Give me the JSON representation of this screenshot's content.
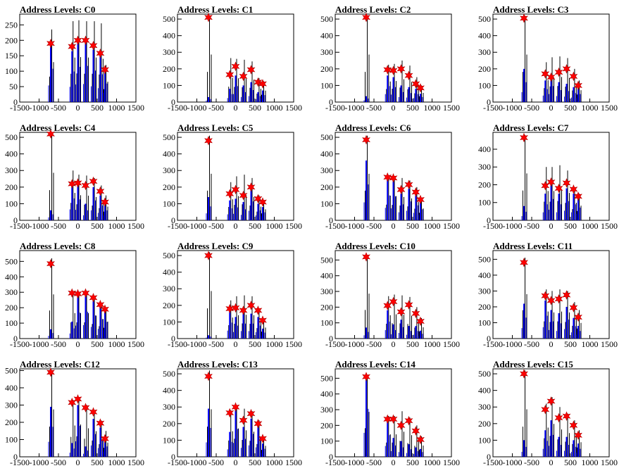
{
  "figure": {
    "panels_per_row": 4,
    "colors": {
      "black_trace": "#000000",
      "blue_trace": "#0000ff",
      "marker": "#ff0000",
      "axis": "#000000"
    }
  },
  "chart_data": [
    {
      "type": "bar",
      "title": "Address Levels: C0",
      "xlim": [
        -1500,
        1500
      ],
      "ylim": [
        0,
        285
      ],
      "xticks": [
        -1500,
        -1000,
        -500,
        0,
        500,
        1000,
        1500
      ],
      "yticks": [
        0,
        50,
        100,
        150,
        200,
        250
      ],
      "grid": false,
      "legend": "none",
      "peaks": {
        "x": [
          -700,
          -150,
          0,
          200,
          400,
          580,
          700
        ],
        "black": [
          235,
          262,
          265,
          262,
          262,
          255,
          120
        ],
        "blue": [
          180,
          165,
          190,
          195,
          170,
          150,
          100
        ],
        "markers": [
          190,
          180,
          200,
          200,
          183,
          158,
          105
        ]
      }
    },
    {
      "type": "bar",
      "title": "Address Levels: C1",
      "xlim": [
        -1500,
        1500
      ],
      "ylim": [
        0,
        530
      ],
      "xticks": [
        -1500,
        -1000,
        -500,
        0,
        500,
        1000,
        1500
      ],
      "yticks": [
        0,
        100,
        200,
        300,
        400,
        500
      ],
      "grid": false,
      "legend": "none",
      "peaks": {
        "x": [
          -700,
          -150,
          0,
          200,
          400,
          580,
          700
        ],
        "black": [
          520,
          265,
          260,
          255,
          245,
          145,
          125
        ],
        "blue": [
          30,
          80,
          160,
          100,
          120,
          60,
          70
        ],
        "markers": [
          510,
          165,
          215,
          155,
          195,
          120,
          110
        ]
      }
    },
    {
      "type": "bar",
      "title": "Address Levels: C2",
      "xlim": [
        -1500,
        1500
      ],
      "ylim": [
        0,
        530
      ],
      "xticks": [
        -1500,
        -1000,
        -500,
        0,
        500,
        1000,
        1500
      ],
      "yticks": [
        0,
        100,
        200,
        300,
        400,
        500
      ],
      "grid": false,
      "legend": "none",
      "peaks": {
        "x": [
          -700,
          -150,
          0,
          200,
          400,
          580,
          700
        ],
        "black": [
          520,
          225,
          230,
          250,
          220,
          150,
          100
        ],
        "blue": [
          35,
          160,
          150,
          100,
          90,
          80,
          50
        ],
        "markers": [
          510,
          195,
          190,
          200,
          160,
          110,
          85
        ]
      }
    },
    {
      "type": "bar",
      "title": "Address Levels: C3",
      "xlim": [
        -1500,
        1500
      ],
      "ylim": [
        0,
        530
      ],
      "xticks": [
        -1500,
        -1000,
        -500,
        0,
        500,
        1000,
        1500
      ],
      "yticks": [
        0,
        100,
        200,
        300,
        400,
        500
      ],
      "grid": false,
      "legend": "none",
      "peaks": {
        "x": [
          -700,
          -150,
          0,
          200,
          400,
          580,
          700
        ],
        "black": [
          520,
          240,
          270,
          275,
          265,
          200,
          130
        ],
        "blue": [
          200,
          130,
          160,
          120,
          110,
          90,
          80
        ],
        "markers": [
          505,
          170,
          150,
          180,
          200,
          155,
          100
        ]
      }
    },
    {
      "type": "bar",
      "title": "Address Levels: C4",
      "xlim": [
        -1500,
        1500
      ],
      "ylim": [
        0,
        530
      ],
      "xticks": [
        -1500,
        -1000,
        -500,
        0,
        500,
        1000,
        1500
      ],
      "yticks": [
        0,
        100,
        200,
        300,
        400,
        500
      ],
      "grid": false,
      "legend": "none",
      "peaks": {
        "x": [
          -700,
          -150,
          0,
          200,
          400,
          580,
          700
        ],
        "black": [
          520,
          300,
          275,
          270,
          255,
          210,
          150
        ],
        "blue": [
          60,
          220,
          210,
          100,
          200,
          150,
          100
        ],
        "markers": [
          520,
          220,
          225,
          210,
          235,
          175,
          110
        ]
      }
    },
    {
      "type": "bar",
      "title": "Address Levels: C5",
      "xlim": [
        -1500,
        1500
      ],
      "ylim": [
        0,
        530
      ],
      "xticks": [
        -1500,
        -1000,
        -500,
        0,
        500,
        1000,
        1500
      ],
      "yticks": [
        0,
        100,
        200,
        300,
        400,
        500
      ],
      "grid": false,
      "legend": "none",
      "peaks": {
        "x": [
          -700,
          -150,
          0,
          200,
          400,
          580,
          700
        ],
        "black": [
          510,
          230,
          265,
          275,
          255,
          150,
          120
        ],
        "blue": [
          140,
          120,
          130,
          110,
          190,
          100,
          80
        ],
        "markers": [
          480,
          160,
          185,
          150,
          200,
          130,
          110
        ]
      }
    },
    {
      "type": "bar",
      "title": "Address Levels: C6",
      "xlim": [
        -1500,
        1500
      ],
      "ylim": [
        0,
        530
      ],
      "xticks": [
        -1500,
        -1000,
        -500,
        0,
        500,
        1000,
        1500
      ],
      "yticks": [
        0,
        100,
        200,
        300,
        400,
        500
      ],
      "grid": false,
      "legend": "none",
      "peaks": {
        "x": [
          -700,
          -150,
          0,
          200,
          400,
          580,
          700
        ],
        "black": [
          510,
          270,
          265,
          255,
          240,
          200,
          130
        ],
        "blue": [
          360,
          250,
          240,
          160,
          190,
          150,
          110
        ],
        "markers": [
          485,
          260,
          255,
          185,
          215,
          170,
          125
        ]
      }
    },
    {
      "type": "bar",
      "title": "Address Levels: C7",
      "xlim": [
        -1500,
        1500
      ],
      "ylim": [
        0,
        495
      ],
      "xticks": [
        -1500,
        -1000,
        -500,
        0,
        500,
        1000,
        1500
      ],
      "yticks": [
        0,
        100,
        200,
        300,
        400
      ],
      "grid": false,
      "legend": "none",
      "peaks": {
        "x": [
          -700,
          -150,
          0,
          200,
          400,
          580,
          700
        ],
        "black": [
          480,
          300,
          300,
          310,
          280,
          180,
          150
        ],
        "blue": [
          80,
          150,
          200,
          150,
          180,
          150,
          120
        ],
        "markers": [
          465,
          195,
          215,
          180,
          210,
          175,
          135
        ]
      }
    },
    {
      "type": "bar",
      "title": "Address Levels: C8",
      "xlim": [
        -1500,
        1500
      ],
      "ylim": [
        0,
        570
      ],
      "xticks": [
        -1500,
        -1000,
        -500,
        0,
        500,
        1000,
        1500
      ],
      "yticks": [
        0,
        100,
        200,
        300,
        400,
        500
      ],
      "grid": false,
      "legend": "none",
      "peaks": {
        "x": [
          -700,
          -150,
          0,
          200,
          400,
          580,
          700
        ],
        "black": [
          520,
          300,
          300,
          300,
          270,
          230,
          200
        ],
        "blue": [
          60,
          110,
          280,
          290,
          250,
          210,
          180
        ],
        "markers": [
          485,
          295,
          290,
          295,
          265,
          220,
          190
        ]
      }
    },
    {
      "type": "bar",
      "title": "Address Levels: C9",
      "xlim": [
        -1500,
        1500
      ],
      "ylim": [
        0,
        530
      ],
      "xticks": [
        -1500,
        -1000,
        -500,
        0,
        500,
        1000,
        1500
      ],
      "yticks": [
        0,
        100,
        200,
        300,
        400,
        500
      ],
      "grid": false,
      "legend": "none",
      "peaks": {
        "x": [
          -700,
          -150,
          0,
          200,
          400,
          580,
          700
        ],
        "black": [
          520,
          230,
          255,
          260,
          255,
          180,
          120
        ],
        "blue": [
          20,
          160,
          130,
          150,
          150,
          130,
          60
        ],
        "markers": [
          500,
          180,
          185,
          170,
          200,
          170,
          110
        ]
      }
    },
    {
      "type": "bar",
      "title": "Address Levels: C10",
      "xlim": [
        -1500,
        1500
      ],
      "ylim": [
        0,
        560
      ],
      "xticks": [
        -1500,
        -1000,
        -500,
        0,
        500,
        1000,
        1500
      ],
      "yticks": [
        0,
        100,
        200,
        300,
        400,
        500
      ],
      "grid": false,
      "legend": "none",
      "peaks": {
        "x": [
          -700,
          -150,
          0,
          200,
          400,
          580,
          700
        ],
        "black": [
          520,
          270,
          280,
          275,
          265,
          200,
          130
        ],
        "blue": [
          70,
          180,
          90,
          120,
          80,
          80,
          50
        ],
        "markers": [
          520,
          210,
          235,
          170,
          215,
          160,
          110
        ]
      }
    },
    {
      "type": "bar",
      "title": "Address Levels: C11",
      "xlim": [
        -1500,
        1500
      ],
      "ylim": [
        0,
        555
      ],
      "xticks": [
        -1500,
        -1000,
        -500,
        0,
        500,
        1000,
        1500
      ],
      "yticks": [
        0,
        100,
        200,
        300,
        400,
        500
      ],
      "grid": false,
      "legend": "none",
      "peaks": {
        "x": [
          -700,
          -150,
          0,
          200,
          400,
          580,
          700
        ],
        "black": [
          510,
          310,
          300,
          310,
          300,
          230,
          180
        ],
        "blue": [
          220,
          240,
          180,
          160,
          200,
          130,
          80
        ],
        "markers": [
          480,
          270,
          240,
          250,
          275,
          195,
          135
        ]
      }
    },
    {
      "type": "bar",
      "title": "Address Levels: C12",
      "xlim": [
        -1500,
        1500
      ],
      "ylim": [
        0,
        510
      ],
      "xticks": [
        -1500,
        -1000,
        -500,
        0,
        500,
        1000,
        1500
      ],
      "yticks": [
        0,
        100,
        200,
        300,
        400,
        500
      ],
      "grid": false,
      "legend": "none",
      "peaks": {
        "x": [
          -700,
          -150,
          0,
          200,
          400,
          580,
          700
        ],
        "black": [
          500,
          330,
          340,
          300,
          270,
          210,
          150
        ],
        "blue": [
          290,
          80,
          300,
          60,
          220,
          170,
          100
        ],
        "markers": [
          490,
          315,
          335,
          285,
          260,
          195,
          105
        ]
      }
    },
    {
      "type": "bar",
      "title": "Address Levels: C13",
      "xlim": [
        -1500,
        1500
      ],
      "ylim": [
        0,
        530
      ],
      "xticks": [
        -1500,
        -1000,
        -500,
        0,
        500,
        1000,
        1500
      ],
      "yticks": [
        0,
        100,
        200,
        300,
        400,
        500
      ],
      "grid": false,
      "legend": "none",
      "peaks": {
        "x": [
          -700,
          -150,
          0,
          200,
          400,
          580,
          700
        ],
        "black": [
          520,
          280,
          310,
          290,
          275,
          220,
          120
        ],
        "blue": [
          290,
          150,
          280,
          180,
          230,
          190,
          80
        ],
        "markers": [
          485,
          265,
          300,
          220,
          260,
          200,
          110
        ]
      }
    },
    {
      "type": "bar",
      "title": "Address Levels: C14",
      "xlim": [
        -1500,
        1500
      ],
      "ylim": [
        0,
        560
      ],
      "xticks": [
        -1500,
        -1000,
        -500,
        0,
        500,
        1000,
        1500
      ],
      "yticks": [
        0,
        100,
        200,
        300,
        400,
        500
      ],
      "grid": false,
      "legend": "none",
      "peaks": {
        "x": [
          -700,
          -150,
          0,
          200,
          400,
          580,
          700
        ],
        "black": [
          520,
          260,
          260,
          290,
          250,
          200,
          130
        ],
        "blue": [
          510,
          230,
          120,
          100,
          80,
          60,
          50
        ],
        "markers": [
          510,
          240,
          240,
          200,
          230,
          165,
          110
        ]
      }
    },
    {
      "type": "bar",
      "title": "Address Levels: C15",
      "xlim": [
        -1500,
        1500
      ],
      "ylim": [
        0,
        530
      ],
      "xticks": [
        -1500,
        -1000,
        -500,
        0,
        500,
        1000,
        1500
      ],
      "yticks": [
        0,
        100,
        200,
        300,
        400,
        500
      ],
      "grid": false,
      "legend": "none",
      "peaks": {
        "x": [
          -700,
          -150,
          0,
          200,
          400,
          580,
          700
        ],
        "black": [
          520,
          320,
          360,
          300,
          260,
          220,
          160
        ],
        "blue": [
          100,
          160,
          220,
          120,
          120,
          100,
          80
        ],
        "markers": [
          500,
          285,
          335,
          235,
          245,
          190,
          130
        ]
      }
    }
  ]
}
